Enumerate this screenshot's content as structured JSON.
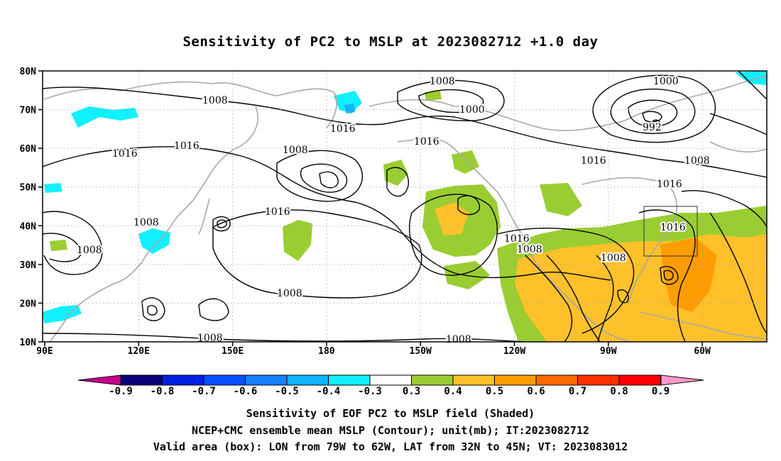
{
  "title": "Sensitivity of PC2 to MSLP at 2023082712 +1.0 day",
  "lat_labels": [
    "80N",
    "70N",
    "60N",
    "50N",
    "40N",
    "30N",
    "20N",
    "10N"
  ],
  "lon_labels": [
    "90E",
    "120E",
    "150E",
    "180",
    "150W",
    "120W",
    "90W",
    "60W"
  ],
  "contour_labels": [
    "1008",
    "1016",
    "1016",
    "1008",
    "1008",
    "1008",
    "1016",
    "1008",
    "1016",
    "1008",
    "1000",
    "1016",
    "1000",
    "992",
    "1016",
    "1008",
    "1016",
    "1016",
    "1016",
    "1008",
    "1008",
    "1008",
    "1008"
  ],
  "colorbar": {
    "labels": [
      "-0.9",
      "-0.8",
      "-0.7",
      "-0.6",
      "-0.5",
      "-0.4",
      "-0.3",
      "0.3",
      "0.4",
      "0.5",
      "0.6",
      "0.7",
      "0.8",
      "0.9"
    ],
    "colors": [
      "#0a007a",
      "#0020e0",
      "#0850ff",
      "#1a80ff",
      "#10b4ff",
      "#10f0ff",
      "#ffffff",
      "#9acd32",
      "#ffc12a",
      "#ff9d00",
      "#ff6a00",
      "#ff3000",
      "#ff0000"
    ],
    "low_arrow_color": "#c80090",
    "high_arrow_color": "#ff9acd"
  },
  "captions": [
    "Sensitivity of EOF PC2 to MSLP field (Shaded)",
    "NCEP+CMC ensemble mean MSLP (Contour); unit(mb); IT:2023082712",
    "Valid area (box): LON from 79W to 62W, LAT from 32N to 45N; VT: 2023083012"
  ]
}
